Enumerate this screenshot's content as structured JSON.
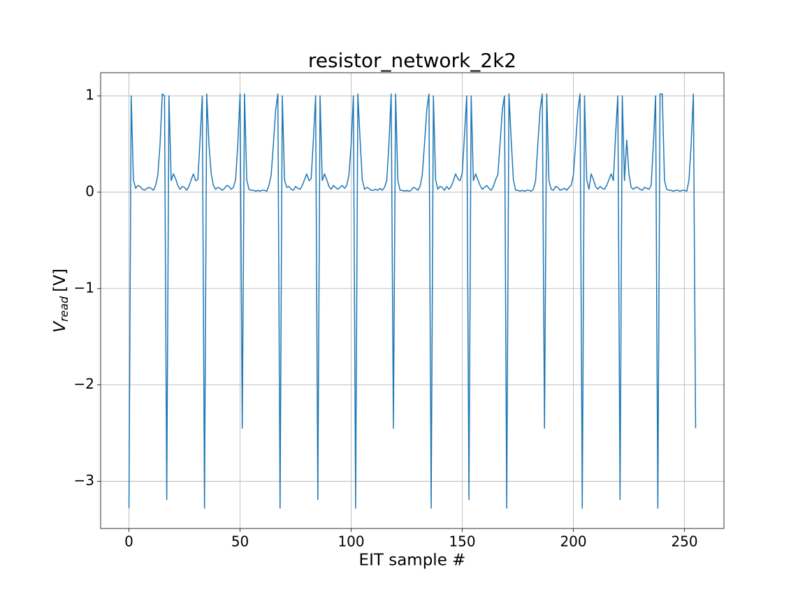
{
  "chart_data": {
    "type": "line",
    "title": "resistor_network_2k2",
    "xlabel": "EIT sample #",
    "ylabel": {
      "symbol": "V",
      "subscript": "read",
      "unit": "[V]"
    },
    "color": "#1f77b4",
    "grid": true,
    "xlim": [
      -12.75,
      267.75
    ],
    "xticks": [
      0,
      50,
      100,
      150,
      200,
      250
    ],
    "ylim": [
      -3.49,
      1.24
    ],
    "yticks": [
      {
        "value": -3,
        "label": "−3"
      },
      {
        "value": -2,
        "label": "−2"
      },
      {
        "value": -1,
        "label": "−1"
      },
      0,
      1
    ],
    "x": [
      0,
      1,
      2,
      3,
      4,
      5,
      6,
      7,
      8,
      9,
      10,
      11,
      12,
      13,
      14,
      15,
      16,
      17,
      18,
      19,
      20,
      21,
      22,
      23,
      24,
      25,
      26,
      27,
      28,
      29,
      30,
      31,
      32,
      33,
      34,
      35,
      36,
      37,
      38,
      39,
      40,
      41,
      42,
      43,
      44,
      45,
      46,
      47,
      48,
      49,
      50,
      51,
      52,
      53,
      54,
      55,
      56,
      57,
      58,
      59,
      60,
      61,
      62,
      63,
      64,
      65,
      66,
      67,
      68,
      69,
      70,
      71,
      72,
      73,
      74,
      75,
      76,
      77,
      78,
      79,
      80,
      81,
      82,
      83,
      84,
      85,
      86,
      87,
      88,
      89,
      90,
      91,
      92,
      93,
      94,
      95,
      96,
      97,
      98,
      99,
      100,
      101,
      102,
      103,
      104,
      105,
      106,
      107,
      108,
      109,
      110,
      111,
      112,
      113,
      114,
      115,
      116,
      117,
      118,
      119,
      120,
      121,
      122,
      123,
      124,
      125,
      126,
      127,
      128,
      129,
      130,
      131,
      132,
      133,
      134,
      135,
      136,
      137,
      138,
      139,
      140,
      141,
      142,
      143,
      144,
      145,
      146,
      147,
      148,
      149,
      150,
      151,
      152,
      153,
      154,
      155,
      156,
      157,
      158,
      159,
      160,
      161,
      162,
      163,
      164,
      165,
      166,
      167,
      168,
      169,
      170,
      171,
      172,
      173,
      174,
      175,
      176,
      177,
      178,
      179,
      180,
      181,
      182,
      183,
      184,
      185,
      186,
      187,
      188,
      189,
      190,
      191,
      192,
      193,
      194,
      195,
      196,
      197,
      198,
      199,
      200,
      201,
      202,
      203,
      204,
      205,
      206,
      207,
      208,
      209,
      210,
      211,
      212,
      213,
      214,
      215,
      216,
      217,
      218,
      219,
      220,
      221,
      222,
      223,
      224,
      225,
      226,
      227,
      228,
      229,
      230,
      231,
      232,
      233,
      234,
      235,
      236,
      237,
      238,
      239,
      240,
      241,
      242,
      243,
      244,
      245,
      246,
      247,
      248,
      249,
      250,
      251,
      252,
      253,
      254,
      255
    ],
    "values": [
      -3.28,
      1.0,
      0.13,
      0.04,
      0.07,
      0.06,
      0.03,
      0.02,
      0.04,
      0.05,
      0.04,
      0.02,
      0.07,
      0.18,
      0.5,
      1.02,
      1.0,
      -3.19,
      1.0,
      0.12,
      0.19,
      0.14,
      0.07,
      0.03,
      0.06,
      0.05,
      0.02,
      0.06,
      0.13,
      0.19,
      0.12,
      0.13,
      0.55,
      1.0,
      -3.28,
      1.02,
      0.5,
      0.19,
      0.07,
      0.03,
      0.05,
      0.04,
      0.02,
      0.04,
      0.07,
      0.06,
      0.03,
      0.05,
      0.13,
      0.5,
      1.02,
      -2.45,
      1.02,
      0.13,
      0.03,
      0.02,
      0.02,
      0.01,
      0.02,
      0.01,
      0.02,
      0.02,
      0.01,
      0.07,
      0.18,
      0.5,
      0.85,
      1.02,
      -3.28,
      1.0,
      0.13,
      0.05,
      0.06,
      0.03,
      0.02,
      0.06,
      0.04,
      0.03,
      0.07,
      0.13,
      0.19,
      0.12,
      0.14,
      0.55,
      1.0,
      -3.19,
      1.0,
      0.12,
      0.19,
      0.13,
      0.06,
      0.03,
      0.07,
      0.05,
      0.03,
      0.05,
      0.07,
      0.04,
      0.07,
      0.18,
      0.5,
      1.0,
      -3.28,
      1.02,
      0.55,
      0.13,
      0.03,
      0.05,
      0.04,
      0.02,
      0.02,
      0.03,
      0.02,
      0.04,
      0.02,
      0.05,
      0.12,
      0.5,
      1.02,
      -2.45,
      1.02,
      0.12,
      0.02,
      0.02,
      0.01,
      0.02,
      0.01,
      0.02,
      0.05,
      0.04,
      0.02,
      0.06,
      0.18,
      0.5,
      0.85,
      1.02,
      -3.28,
      1.0,
      0.13,
      0.03,
      0.06,
      0.05,
      0.02,
      0.06,
      0.03,
      0.06,
      0.12,
      0.19,
      0.14,
      0.12,
      0.2,
      0.6,
      1.0,
      -3.19,
      1.0,
      0.12,
      0.19,
      0.13,
      0.07,
      0.03,
      0.05,
      0.07,
      0.04,
      0.02,
      0.06,
      0.13,
      0.18,
      0.5,
      0.85,
      1.0,
      -3.28,
      1.02,
      0.55,
      0.13,
      0.02,
      0.02,
      0.01,
      0.02,
      0.01,
      0.02,
      0.02,
      0.01,
      0.03,
      0.12,
      0.5,
      0.85,
      1.02,
      -2.45,
      1.02,
      0.12,
      0.03,
      0.02,
      0.06,
      0.05,
      0.02,
      0.03,
      0.04,
      0.02,
      0.05,
      0.07,
      0.18,
      0.5,
      0.85,
      1.02,
      -3.28,
      1.0,
      0.13,
      0.03,
      0.19,
      0.13,
      0.06,
      0.03,
      0.06,
      0.04,
      0.03,
      0.07,
      0.13,
      0.19,
      0.12,
      0.6,
      1.0,
      -3.19,
      1.0,
      0.12,
      0.54,
      0.19,
      0.05,
      0.03,
      0.05,
      0.05,
      0.03,
      0.02,
      0.05,
      0.04,
      0.03,
      0.07,
      0.5,
      1.0,
      -3.28,
      1.02,
      1.02,
      0.12,
      0.03,
      0.02,
      0.02,
      0.01,
      0.02,
      0.02,
      0.01,
      0.02,
      0.02,
      0.01,
      0.12,
      0.5,
      1.02,
      -2.45
    ]
  }
}
